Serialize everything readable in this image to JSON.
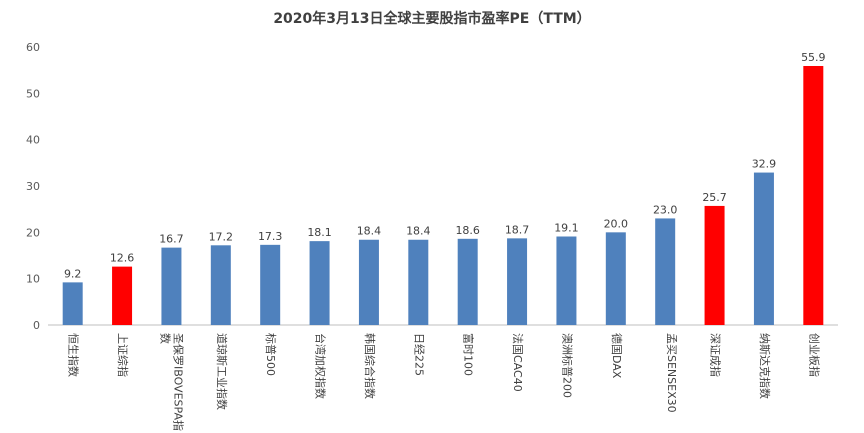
{
  "chart_data": {
    "type": "bar",
    "title": "2020年3月13日全球主要股指市盈率PE（TTM）",
    "xlabel": "",
    "ylabel": "",
    "ylim": [
      0,
      60
    ],
    "yticks": [
      0,
      10,
      20,
      30,
      40,
      50,
      60
    ],
    "grid": false,
    "legend": "none",
    "categories": [
      "恒生指数",
      "上证综指",
      "圣保罗IBOVESPA指数",
      "道琼斯工业指数",
      "标普500",
      "台湾加权指数",
      "韩国综合指数",
      "日经225",
      "富时100",
      "法国CAC40",
      "澳洲标普200",
      "德国DAX",
      "孟买SENSEX30",
      "深证成指",
      "纳斯达克指数",
      "创业板指"
    ],
    "values": [
      9.2,
      12.6,
      16.7,
      17.2,
      17.3,
      18.1,
      18.4,
      18.4,
      18.6,
      18.7,
      19.1,
      20.0,
      23.0,
      25.7,
      32.9,
      55.9
    ],
    "value_labels": [
      "9.2",
      "12.6",
      "16.7",
      "17.2",
      "17.3",
      "18.1",
      "18.4",
      "18.4",
      "18.6",
      "18.7",
      "19.1",
      "20.0",
      "23.0",
      "25.7",
      "32.9",
      "55.9"
    ],
    "bar_colors": [
      "#4f81bd",
      "#ff0000",
      "#4f81bd",
      "#4f81bd",
      "#4f81bd",
      "#4f81bd",
      "#4f81bd",
      "#4f81bd",
      "#4f81bd",
      "#4f81bd",
      "#4f81bd",
      "#4f81bd",
      "#4f81bd",
      "#ff0000",
      "#4f81bd",
      "#ff0000"
    ]
  }
}
